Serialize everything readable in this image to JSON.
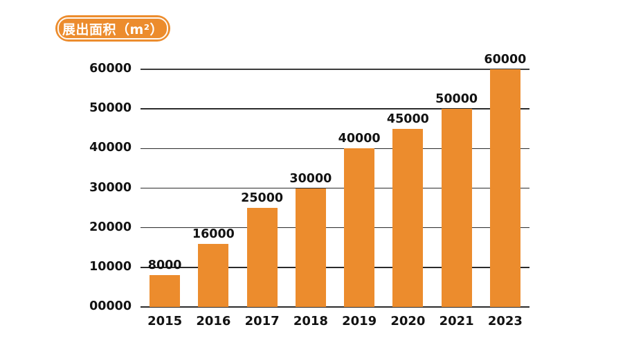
{
  "page": {
    "background": "#ffffff"
  },
  "header": {
    "title_badge": "展出面积（m²）"
  },
  "colors": {
    "accent_orange": "#EC8C2D",
    "grid_line": "#2b2b2b",
    "text": "#121212",
    "badge_text": "#ffffff"
  },
  "chart_data": {
    "type": "bar",
    "title": "展出面积（m²）",
    "categories": [
      "2015",
      "2016",
      "2017",
      "2018",
      "2019",
      "2020",
      "2021",
      "2023"
    ],
    "values": [
      8000,
      16000,
      25000,
      30000,
      40000,
      45000,
      50000,
      60000
    ],
    "bar_value_labels": [
      "8000",
      "16000",
      "25000",
      "30000",
      "40000",
      "45000",
      "50000",
      "60000"
    ],
    "xlabel": "",
    "ylabel": "",
    "ylim": [
      0,
      60000
    ],
    "ytick_interval": 10000,
    "ytick_labels": [
      "00000",
      "10000",
      "20000",
      "30000",
      "40000",
      "50000",
      "60000"
    ],
    "grid": true,
    "legend": false,
    "bar_color": "#EC8C2D"
  }
}
